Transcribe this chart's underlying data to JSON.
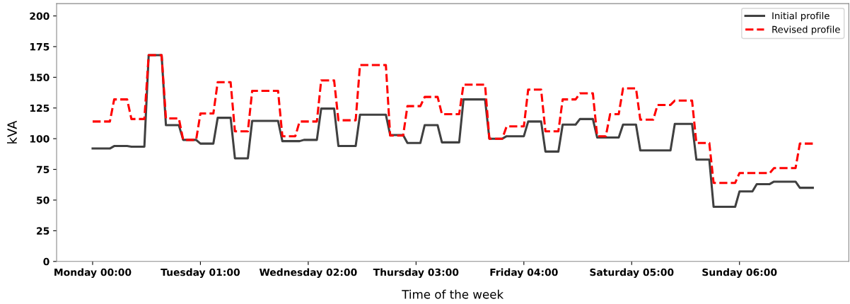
{
  "chart_data": {
    "type": "line",
    "xlabel": "Time of the week",
    "ylabel": "kVA",
    "ylim": [
      0,
      210
    ],
    "categories": [
      "Monday 00:00",
      null,
      null,
      null,
      null,
      null,
      null,
      null,
      null,
      null,
      null,
      null,
      null,
      null,
      null,
      null,
      null,
      null,
      null,
      null,
      null,
      null,
      null,
      null,
      null,
      "Tuesday 01:00",
      null,
      null,
      null,
      null,
      null,
      null,
      null,
      null,
      null,
      null,
      null,
      null,
      null,
      null,
      null,
      null,
      null,
      null,
      null,
      null,
      null,
      null,
      null,
      null,
      "Wednesday 02:00",
      null,
      null,
      null,
      null,
      null,
      null,
      null,
      null,
      null,
      null,
      null,
      null,
      null,
      null,
      null,
      null,
      null,
      null,
      null,
      null,
      null,
      null,
      null,
      null,
      "Thursday 03:00",
      null,
      null,
      null,
      null,
      null,
      null,
      null,
      null,
      null,
      null,
      null,
      null,
      null,
      null,
      null,
      null,
      null,
      null,
      null,
      null,
      null,
      null,
      null,
      null,
      "Friday 04:00",
      null,
      null,
      null,
      null,
      null,
      null,
      null,
      null,
      null,
      null,
      null,
      null,
      null,
      null,
      null,
      null,
      null,
      null,
      null,
      null,
      null,
      null,
      null,
      null,
      "Saturday 05:00",
      null,
      null,
      null,
      null,
      null,
      null,
      null,
      null,
      null,
      null,
      null,
      null,
      null,
      null,
      null,
      null,
      null,
      null,
      null,
      null,
      null,
      null,
      null,
      null,
      "Sunday 06:00",
      null,
      null,
      null,
      null,
      null,
      null,
      null,
      null,
      null,
      null,
      null,
      null,
      null,
      null,
      null,
      null,
      null
    ],
    "yticks": [
      0,
      25,
      50,
      75,
      100,
      125,
      150,
      175,
      200
    ],
    "grid": false,
    "legend": "top right",
    "marker": "none",
    "series": [
      {
        "name": "Initial profile",
        "color": "#404040",
        "line_style": "solid",
        "values": [
          92,
          92,
          92,
          92,
          92,
          94,
          94,
          94,
          94,
          93.5,
          93.5,
          93.5,
          93.5,
          168,
          168,
          168,
          168,
          111,
          111,
          111,
          111,
          99,
          99,
          99,
          99,
          96,
          96,
          96,
          96,
          117,
          117,
          117,
          117,
          84,
          84,
          84,
          84,
          114.5,
          114.5,
          114.5,
          114.5,
          114.5,
          114.5,
          114.5,
          98,
          98,
          98,
          98,
          98,
          99,
          99,
          99,
          99,
          124.5,
          124.5,
          124.5,
          124.5,
          94,
          94,
          94,
          94,
          94,
          119.5,
          119.5,
          119.5,
          119.5,
          119.5,
          119.5,
          119.5,
          103,
          103,
          103,
          103,
          96.5,
          96.5,
          96.5,
          96.5,
          111,
          111,
          111,
          111,
          97,
          97,
          97,
          97,
          97,
          132,
          132,
          132,
          132,
          132,
          132,
          100,
          100,
          100,
          100,
          102,
          102,
          102,
          102,
          102,
          114,
          114,
          114,
          114,
          89.5,
          89.5,
          89.5,
          89.5,
          111.5,
          111.5,
          111.5,
          111.5,
          116,
          116,
          116,
          116,
          101,
          101,
          101,
          101,
          101,
          101,
          111.5,
          111.5,
          111.5,
          111.5,
          90.5,
          90.5,
          90.5,
          90.5,
          90.5,
          90.5,
          90.5,
          90.5,
          112,
          112,
          112,
          112,
          112,
          83,
          83,
          83,
          83,
          44.5,
          44.5,
          44.5,
          44.5,
          44.5,
          44.5,
          57,
          57,
          57,
          57,
          63,
          63,
          63,
          63,
          65,
          65,
          65,
          65,
          65,
          65,
          60,
          60,
          60,
          60
        ]
      },
      {
        "name": "Revised profile",
        "color": "#ff0000",
        "line_style": "dashed",
        "values": [
          114,
          114,
          114,
          114,
          114,
          132,
          132,
          132,
          132,
          116,
          116,
          116,
          116,
          168,
          168,
          168,
          168,
          116.5,
          116.5,
          116.5,
          116.5,
          99,
          99,
          99,
          99,
          120.5,
          120.5,
          120.5,
          120.5,
          146,
          146,
          146,
          146,
          106,
          106,
          106,
          106,
          139,
          139,
          139,
          139,
          139,
          139,
          139,
          102,
          102,
          102,
          102,
          114,
          114,
          114,
          114,
          114,
          147.5,
          147.5,
          147.5,
          147.5,
          115,
          115,
          115,
          115,
          115,
          160,
          160,
          160,
          160,
          160,
          160,
          160,
          102.5,
          102.5,
          102.5,
          102.5,
          126.5,
          126.5,
          126.5,
          126.5,
          134,
          134,
          134,
          134,
          120,
          120,
          120,
          120,
          120,
          144,
          144,
          144,
          144,
          144,
          144,
          100,
          100,
          100,
          100,
          110,
          110,
          110,
          110,
          110,
          140,
          140,
          140,
          140,
          106,
          106,
          106,
          106,
          132,
          132,
          132,
          132,
          137,
          137,
          137,
          137,
          102,
          102,
          102,
          120,
          120,
          120,
          141,
          141,
          141,
          141,
          115.5,
          115.5,
          115.5,
          115.5,
          127.5,
          127.5,
          127.5,
          127.5,
          131,
          131,
          131,
          131,
          131,
          96.5,
          96.5,
          96.5,
          96.5,
          64,
          64,
          64,
          64,
          64,
          64,
          72,
          72,
          72,
          72,
          72,
          72,
          72,
          72,
          76,
          76,
          76,
          76,
          76,
          76,
          96,
          96,
          96,
          96
        ]
      }
    ]
  }
}
